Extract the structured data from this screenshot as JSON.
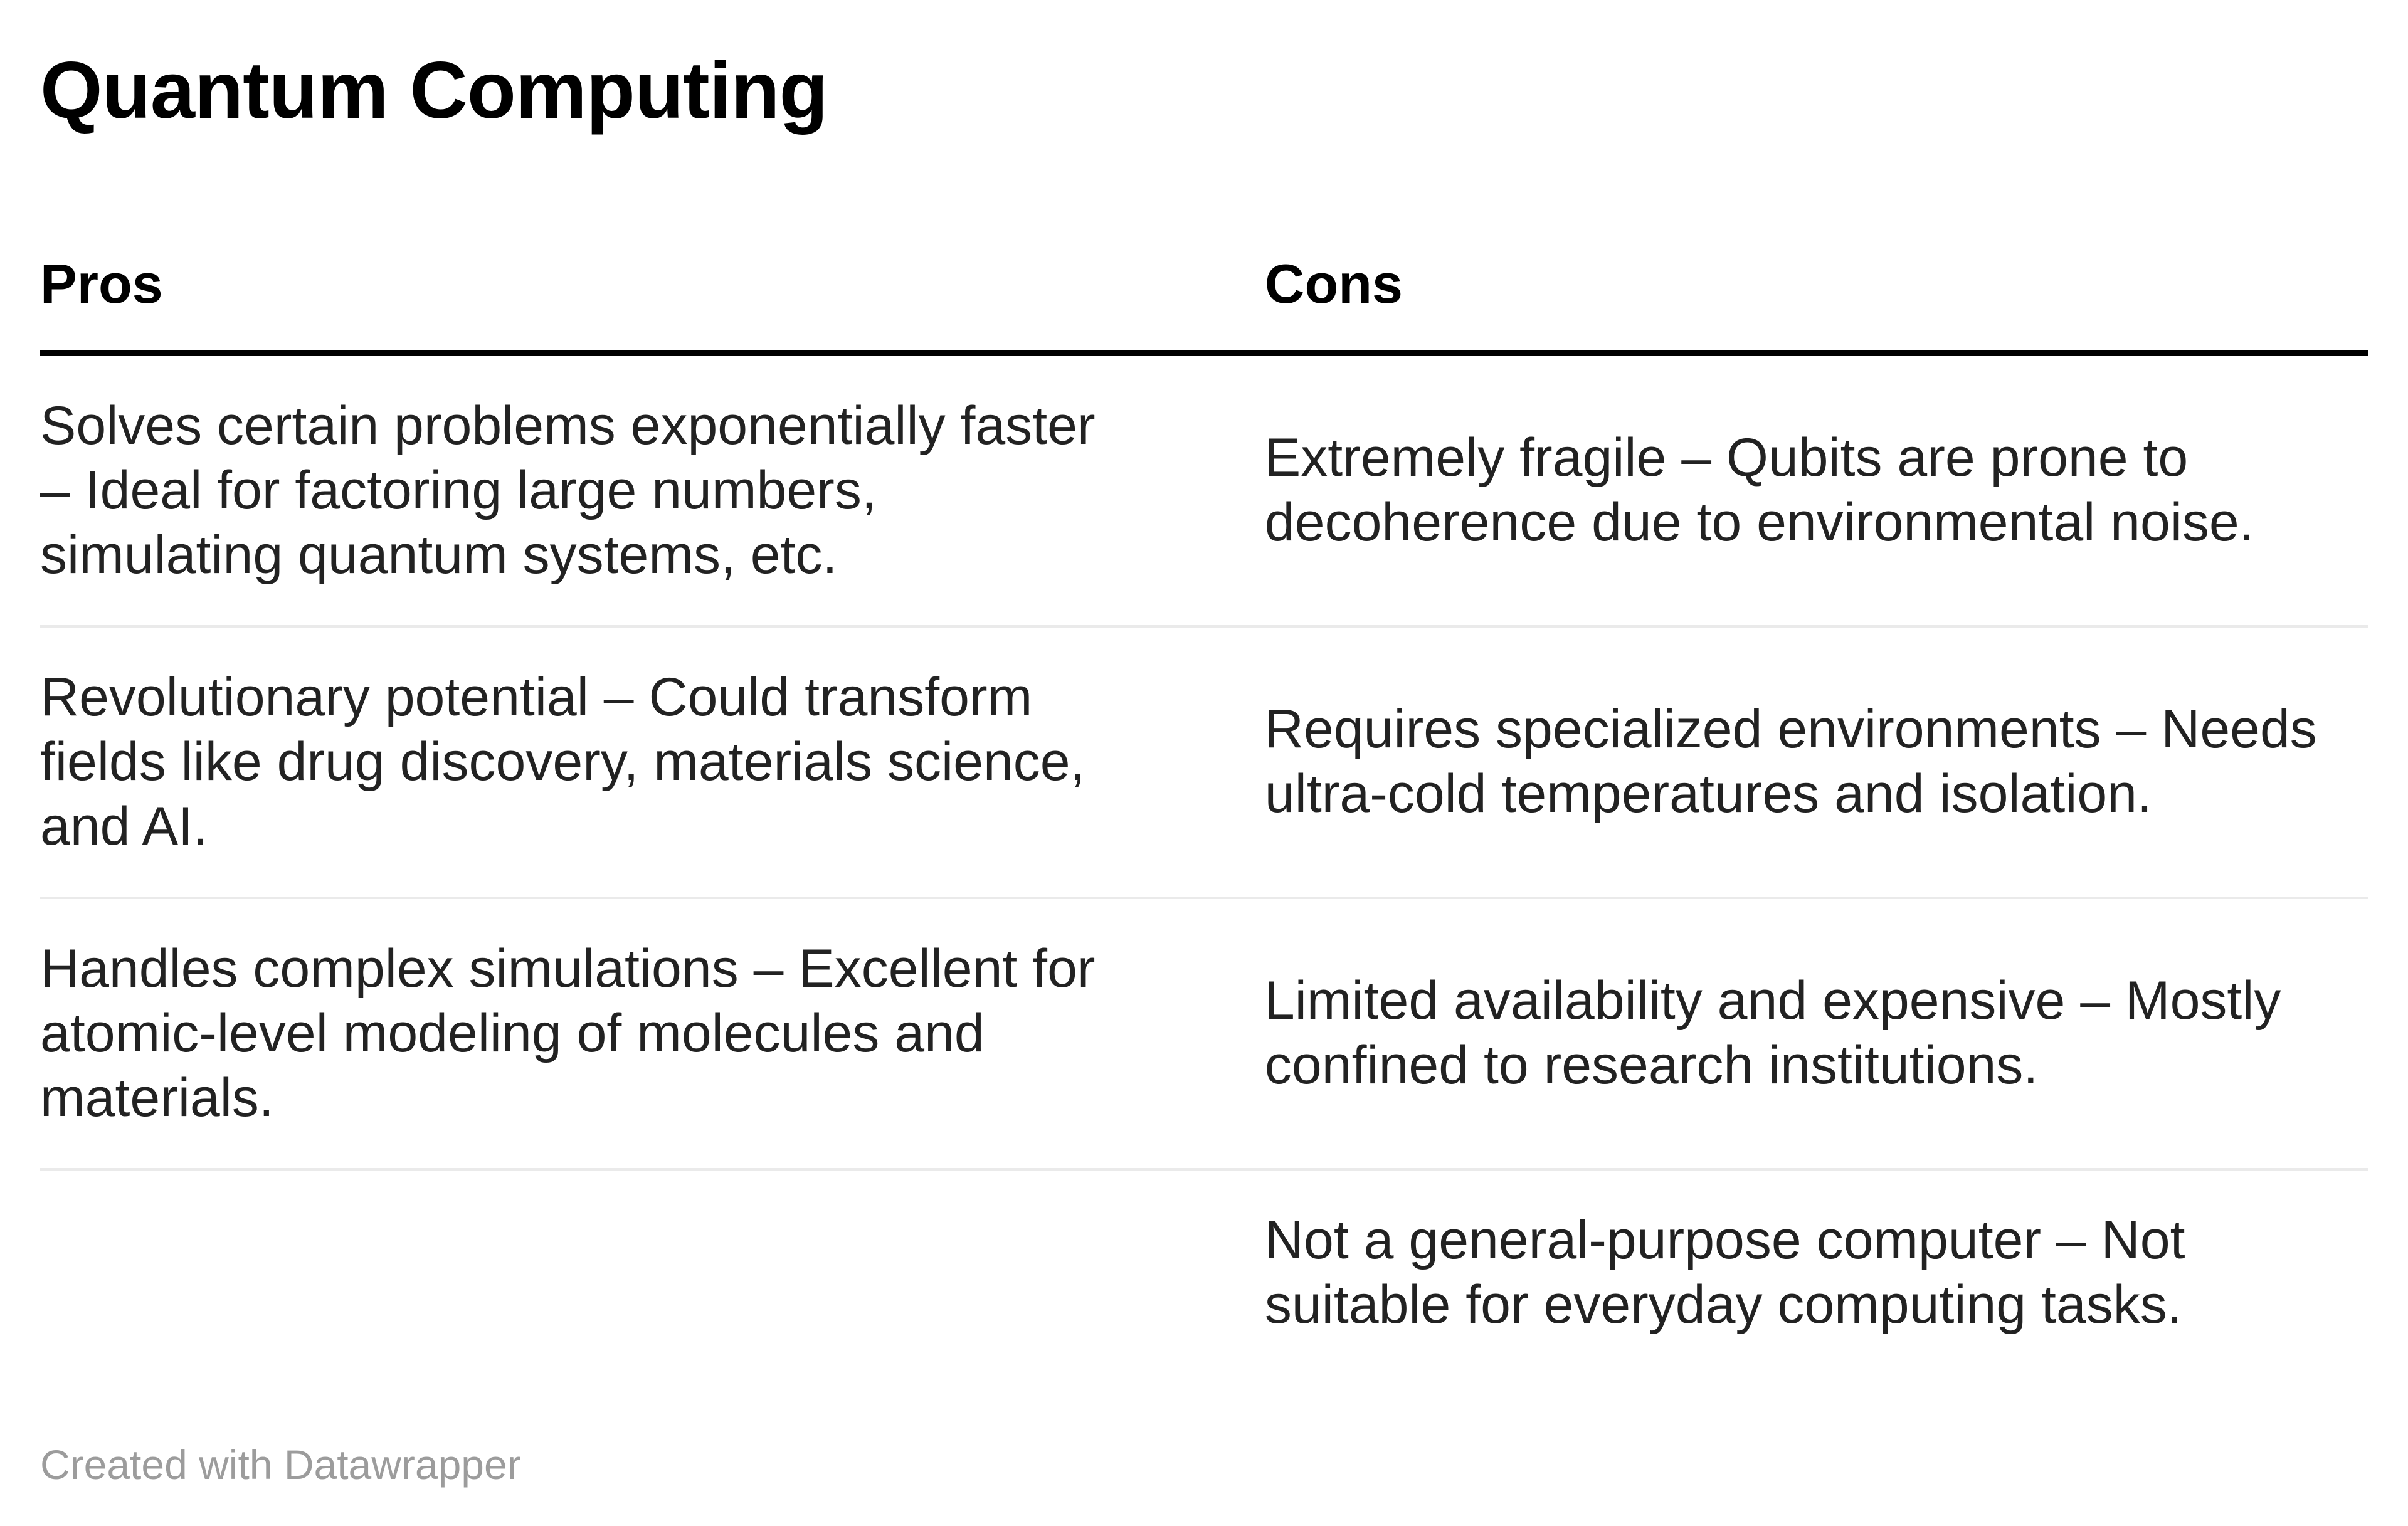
{
  "title": "Quantum Computing",
  "colors": {
    "background": "#ffffff",
    "title_text": "#000000",
    "body_text": "#222222",
    "header_rule": "#000000",
    "row_divider": "#eaeaea",
    "attribution_text": "#9c9c9c"
  },
  "table": {
    "columns": [
      {
        "label": "Pros"
      },
      {
        "label": "Cons"
      }
    ],
    "rows": [
      {
        "pros": "Solves certain problems exponentially faster\n– Ideal for factoring large numbers,\nsimulating quantum systems, etc.",
        "cons": "Extremely fragile – Qubits are prone to\ndecoherence due to environmental noise."
      },
      {
        "pros": "Revolutionary potential – Could transform\nfields like drug discovery, materials science,\nand AI.",
        "cons": "Requires specialized environments – Needs\nultra-cold temperatures and isolation."
      },
      {
        "pros": "Handles complex simulations – Excellent for\natomic-level modeling of molecules and\nmaterials.",
        "cons": "Limited availability and expensive – Mostly\nconfined to research institutions."
      },
      {
        "pros": "",
        "cons": "Not a general-purpose computer – Not\nsuitable for everyday computing tasks."
      }
    ]
  },
  "footer": {
    "attribution": "Created with Datawrapper"
  },
  "chart_data": {
    "type": "table",
    "title": "Quantum Computing",
    "columns": [
      "Pros",
      "Cons"
    ],
    "rows": [
      [
        "Solves certain problems exponentially faster – Ideal for factoring large numbers, simulating quantum systems, etc.",
        "Extremely fragile – Qubits are prone to decoherence due to environmental noise."
      ],
      [
        "Revolutionary potential – Could transform fields like drug discovery, materials science, and AI.",
        "Requires specialized environments – Needs ultra-cold temperatures and isolation."
      ],
      [
        "Handles complex simulations – Excellent for atomic-level modeling of molecules and materials.",
        "Limited availability and expensive – Mostly confined to research institutions."
      ],
      [
        "",
        "Not a general-purpose computer – Not suitable for everyday computing tasks."
      ]
    ],
    "legend_position": "none",
    "grid": "row-dividers"
  }
}
